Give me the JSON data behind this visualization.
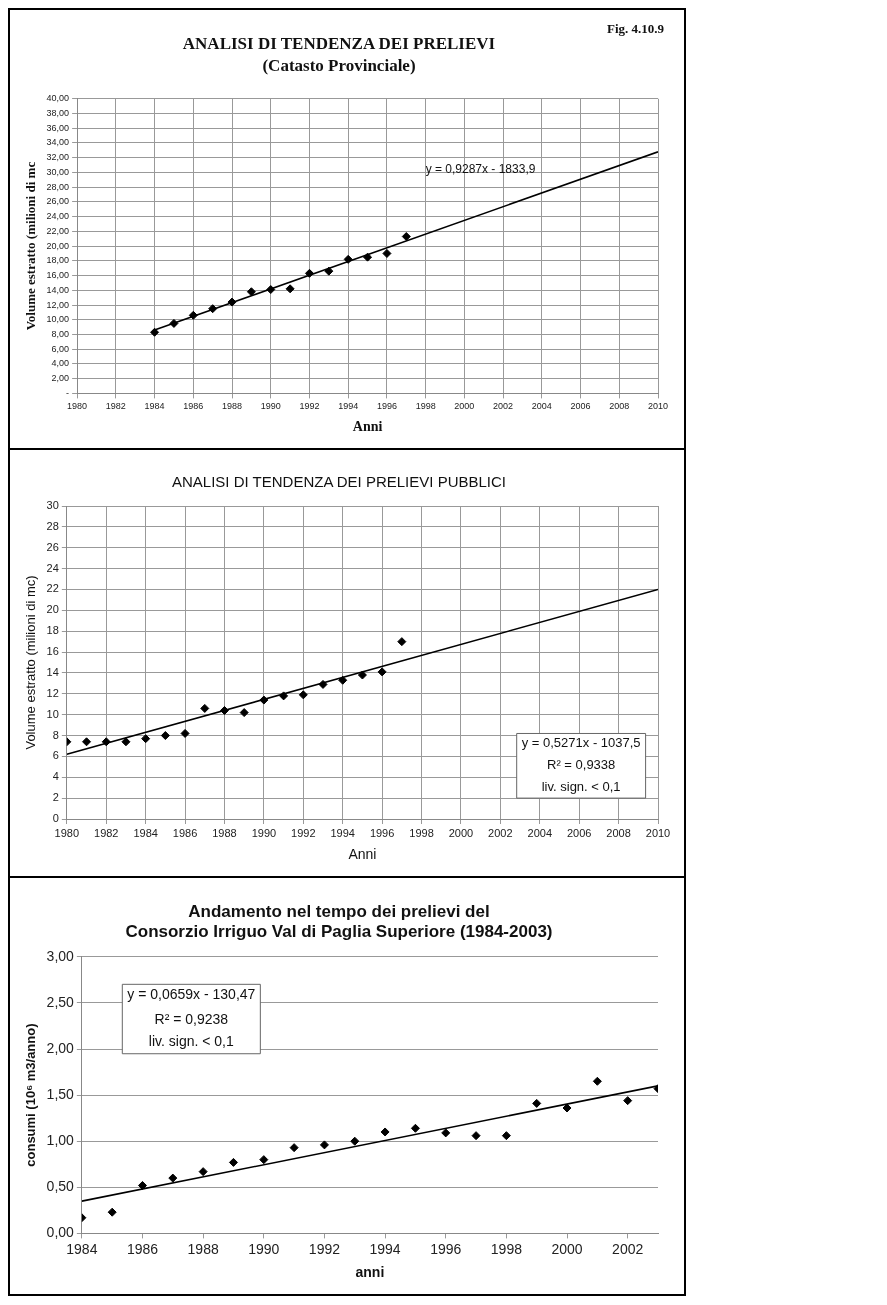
{
  "chart_data": [
    {
      "type": "scatter",
      "title": "ANALISI DI TENDENZA DEI PRELIEVI",
      "subtitle": "(Catasto Provinciale)",
      "xlabel": "Anni",
      "ylabel": "Volume estratto (milioni di mc",
      "annotations": [
        "Fig. 4.10.9",
        "y = 0,9287x - 1833,9"
      ],
      "series": [
        {
          "color": "#000000",
          "marker": "diamond",
          "x": [
            1984,
            1985,
            1986,
            1987,
            1988,
            1989,
            1990,
            1991,
            1992,
            1993,
            1994,
            1995,
            1996,
            1997
          ],
          "values": [
            8.3,
            9.5,
            10.6,
            11.5,
            12.4,
            13.8,
            14.1,
            14.2,
            16.3,
            16.6,
            18.2,
            18.5,
            19.0,
            21.3
          ]
        },
        {
          "type": "line",
          "color": "#000000",
          "marker": "none",
          "line_style": "solid",
          "x": [
            1984,
            2010
          ],
          "values": [
            8.6,
            32.8
          ]
        }
      ],
      "xlim": [
        1980,
        2010
      ],
      "xticks": [
        1980,
        1982,
        1984,
        1986,
        1988,
        1990,
        1992,
        1994,
        1996,
        1998,
        2000,
        2002,
        2004,
        2006,
        2008,
        2010
      ],
      "ylim": [
        0,
        40
      ],
      "yticks": [
        {
          "value": 0,
          "label": "-"
        },
        {
          "value": 2,
          "label": "2,00"
        },
        {
          "value": 4,
          "label": "4,00"
        },
        {
          "value": 6,
          "label": "6,00"
        },
        {
          "value": 8,
          "label": "8,00"
        },
        {
          "value": 10,
          "label": "10,00"
        },
        {
          "value": 12,
          "label": "12,00"
        },
        {
          "value": 14,
          "label": "14,00"
        },
        {
          "value": 16,
          "label": "16,00"
        },
        {
          "value": 18,
          "label": "18,00"
        },
        {
          "value": 20,
          "label": "20,00"
        },
        {
          "value": 22,
          "label": "22,00"
        },
        {
          "value": 24,
          "label": "24,00"
        },
        {
          "value": 26,
          "label": "26,00"
        },
        {
          "value": 28,
          "label": "28,00"
        },
        {
          "value": 30,
          "label": "30,00"
        },
        {
          "value": 32,
          "label": "32,00"
        },
        {
          "value": 34,
          "label": "34,00"
        },
        {
          "value": 36,
          "label": "36,00"
        },
        {
          "value": 38,
          "label": "38,00"
        },
        {
          "value": 40,
          "label": "40,00"
        }
      ],
      "grid": true,
      "legend": false
    },
    {
      "type": "scatter",
      "title": "ANALISI DI TENDENZA DEI PRELIEVI PUBBLICI",
      "xlabel": "Anni",
      "ylabel": "Volume estratto (milioni di mc)",
      "annotations": [
        "y = 0,5271x - 1037,5",
        "R² = 0,9338",
        "liv. sign. < 0,1"
      ],
      "series": [
        {
          "color": "#000000",
          "marker": "diamond",
          "x": [
            1980,
            1981,
            1982,
            1983,
            1984,
            1985,
            1986,
            1987,
            1988,
            1989,
            1990,
            1991,
            1992,
            1993,
            1994,
            1995,
            1996,
            1997
          ],
          "values": [
            7.4,
            7.4,
            7.4,
            7.4,
            7.7,
            8.0,
            8.2,
            10.6,
            10.4,
            10.2,
            11.4,
            11.8,
            11.9,
            12.9,
            13.3,
            13.8,
            14.1,
            17.0
          ]
        },
        {
          "type": "line",
          "color": "#000000",
          "marker": "none",
          "line_style": "solid",
          "x": [
            1980,
            2010
          ],
          "values": [
            6.2,
            22.0
          ]
        }
      ],
      "xlim": [
        1980,
        2010
      ],
      "xticks": [
        1980,
        1982,
        1984,
        1986,
        1988,
        1990,
        1992,
        1994,
        1996,
        1998,
        2000,
        2002,
        2004,
        2006,
        2008,
        2010
      ],
      "ylim": [
        0,
        30
      ],
      "yticks": [
        0,
        2,
        4,
        6,
        8,
        10,
        12,
        14,
        16,
        18,
        20,
        22,
        24,
        26,
        28,
        30
      ],
      "grid": true,
      "legend": false
    },
    {
      "type": "scatter",
      "title": "Andamento nel tempo dei prelievi del\nConsorzio Irriguo Val di Paglia Superiore (1984-2003)",
      "xlabel": "anni",
      "ylabel": "consumi (10⁶ m3/anno)",
      "annotations": [
        "y = 0,0659x - 130,47",
        "R² = 0,9238",
        "liv. sign. < 0,1"
      ],
      "series": [
        {
          "color": "#000000",
          "marker": "diamond",
          "x": [
            1984,
            1985,
            1986,
            1987,
            1988,
            1989,
            1990,
            1991,
            1992,
            1993,
            1994,
            1995,
            1996,
            1997,
            1998,
            1999,
            2000,
            2001,
            2002,
            2003
          ],
          "values": [
            0.17,
            0.23,
            0.52,
            0.6,
            0.67,
            0.77,
            0.8,
            0.93,
            0.96,
            1.0,
            1.1,
            1.14,
            1.09,
            1.06,
            1.06,
            1.41,
            1.36,
            1.65,
            1.44,
            1.57
          ]
        },
        {
          "type": "line",
          "color": "#000000",
          "marker": "none",
          "line_style": "solid",
          "x": [
            1984,
            2003
          ],
          "values": [
            0.35,
            1.6
          ]
        }
      ],
      "xlim": [
        1984,
        2003
      ],
      "xticks": [
        1984,
        1986,
        1988,
        1990,
        1992,
        1994,
        1996,
        1998,
        2000,
        2002
      ],
      "ylim": [
        0,
        3
      ],
      "yticks": [
        {
          "value": 0,
          "label": "0,00"
        },
        {
          "value": 0.5,
          "label": "0,50"
        },
        {
          "value": 1,
          "label": "1,00"
        },
        {
          "value": 1.5,
          "label": "1,50"
        },
        {
          "value": 2,
          "label": "2,00"
        },
        {
          "value": 2.5,
          "label": "2,50"
        },
        {
          "value": 3,
          "label": "3,00"
        }
      ],
      "grid": "y",
      "legend": false
    }
  ]
}
